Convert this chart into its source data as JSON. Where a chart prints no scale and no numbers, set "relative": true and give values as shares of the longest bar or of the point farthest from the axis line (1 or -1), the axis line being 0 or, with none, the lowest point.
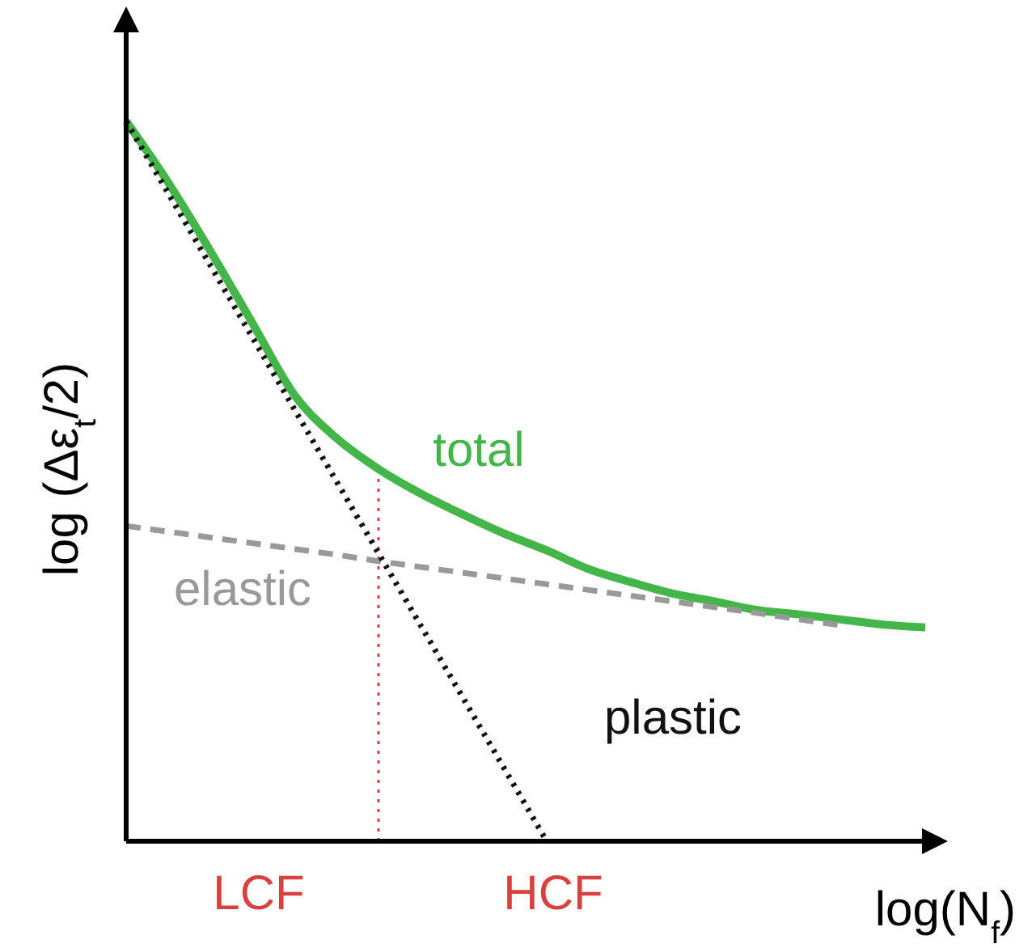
{
  "chart_data": {
    "type": "line",
    "relative": true,
    "xlabel": "log(N$_{f}$)",
    "ylabel": "log (Δε$_{t}$/2)",
    "categories": [
      null,
      null,
      null,
      null,
      null,
      null,
      null,
      null,
      null,
      null,
      null,
      null,
      null,
      null,
      null,
      null,
      null,
      null,
      null,
      null
    ],
    "series": [
      {
        "name": "total",
        "color": "#44b549",
        "line_style": "solid",
        "values": [
          1.0,
          0.915,
          0.82,
          0.72,
          0.62,
          0.56,
          0.517,
          0.483,
          0.454,
          0.427,
          0.404,
          0.378,
          0.36,
          0.344,
          0.333,
          0.321,
          0.315,
          0.308,
          0.301,
          0.297
        ]
      },
      {
        "name": "elastic",
        "color": "#999999",
        "line_style": "dashed",
        "values": [
          0.438,
          0.43,
          0.422,
          0.414,
          0.406,
          0.398,
          0.389,
          0.381,
          0.373,
          0.365,
          0.357,
          0.349,
          0.341,
          0.333,
          0.325,
          0.317,
          0.308,
          0.3,
          null,
          null
        ]
      },
      {
        "name": "plastic",
        "color": "#111111",
        "line_style": "dotted",
        "values": [
          1.0,
          0.9,
          0.8,
          0.7,
          0.6,
          0.5,
          0.4,
          0.3,
          0.2,
          0.1,
          0.0,
          null,
          null,
          null,
          null,
          null,
          null,
          null,
          null,
          null
        ]
      }
    ],
    "annotations": [
      "LCF",
      "HCF"
    ],
    "legend": false,
    "grid": false,
    "marker": "none"
  }
}
